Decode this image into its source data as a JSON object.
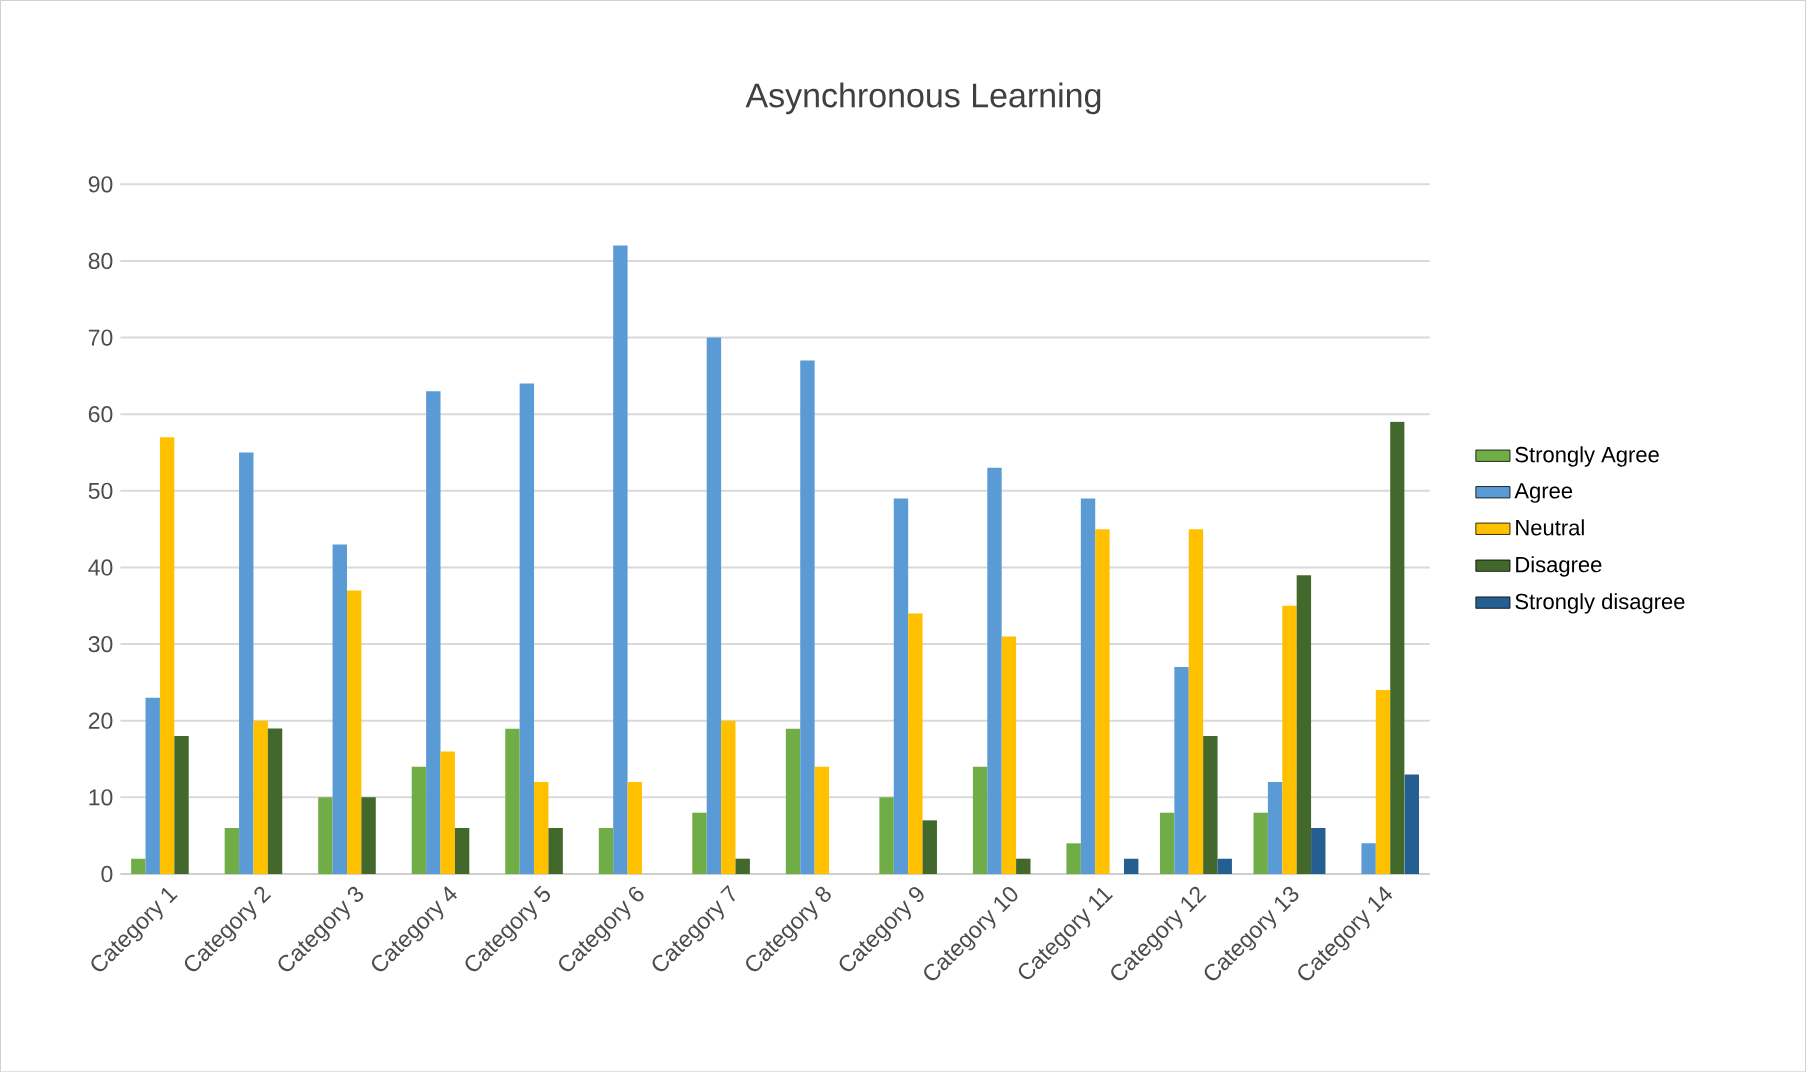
{
  "chart_data": {
    "type": "bar",
    "title": "Asynchronous Learning",
    "categories": [
      "Category 1",
      "Category 2",
      "Category 3",
      "Category 4",
      "Category 5",
      "Category 6",
      "Category 7",
      "Category 8",
      "Category 9",
      "Category 10",
      "Category 11",
      "Category 12",
      "Category 13",
      "Category 14"
    ],
    "series": [
      {
        "name": "Strongly Agree",
        "color": "#70ad47",
        "values": [
          2,
          6,
          10,
          14,
          19,
          6,
          8,
          19,
          10,
          14,
          4,
          8,
          8,
          0
        ]
      },
      {
        "name": "Agree",
        "color": "#5b9bd5",
        "values": [
          23,
          55,
          43,
          63,
          64,
          82,
          70,
          67,
          49,
          53,
          49,
          27,
          12,
          4
        ]
      },
      {
        "name": "Neutral",
        "color": "#ffc000",
        "values": [
          57,
          20,
          37,
          16,
          12,
          12,
          20,
          14,
          34,
          31,
          45,
          45,
          35,
          24
        ]
      },
      {
        "name": "Disagree",
        "color": "#43682b",
        "values": [
          18,
          19,
          10,
          6,
          6,
          0,
          2,
          0,
          7,
          2,
          0,
          18,
          39,
          59
        ]
      },
      {
        "name": "Strongly disagree",
        "color": "#255e91",
        "values": [
          0,
          0,
          0,
          0,
          0,
          0,
          0,
          0,
          0,
          0,
          2,
          2,
          6,
          13
        ]
      }
    ],
    "ylim": [
      0,
      90
    ],
    "yticks": [
      0,
      10,
      20,
      30,
      40,
      50,
      60,
      70,
      80,
      90
    ],
    "grid": "y",
    "legend": "right"
  }
}
